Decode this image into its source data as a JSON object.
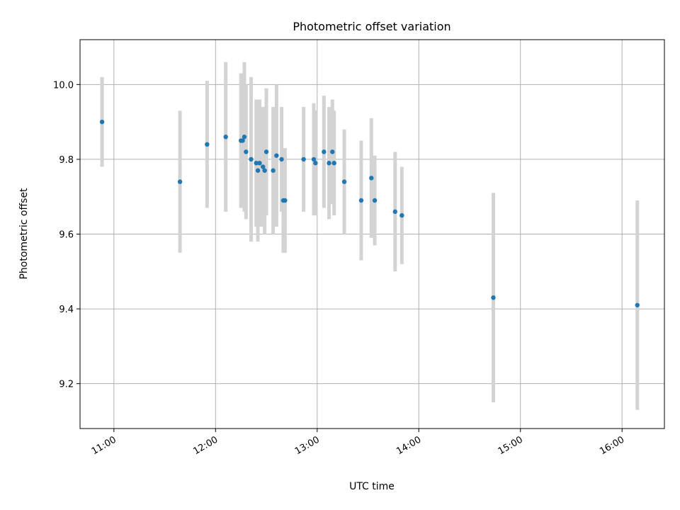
{
  "chart_data": {
    "type": "scatter",
    "title": "Photometric offset variation",
    "xlabel": "UTC time",
    "ylabel": "Photometric offset",
    "x_unit": "UTC time",
    "xlim": [
      "10:40",
      "16:25"
    ],
    "ylim": [
      9.08,
      10.12
    ],
    "x_ticks": [
      "11:00",
      "12:00",
      "13:00",
      "14:00",
      "15:00",
      "16:00"
    ],
    "y_ticks": [
      9.2,
      9.4,
      9.6,
      9.8,
      10.0
    ],
    "y_tick_labels": [
      "9.2",
      "9.4",
      "9.6",
      "9.8",
      "10.0"
    ],
    "grid": true,
    "colors": {
      "point": "#1f77b4",
      "errorbar": "#d3d3d3"
    },
    "points": [
      {
        "x": "10:53",
        "y": 9.9,
        "err": 0.12
      },
      {
        "x": "11:39",
        "y": 9.74,
        "err": 0.19
      },
      {
        "x": "11:55",
        "y": 9.84,
        "err": 0.17
      },
      {
        "x": "12:06",
        "y": 9.86,
        "err": 0.2
      },
      {
        "x": "12:15",
        "y": 9.85,
        "err": 0.18
      },
      {
        "x": "12:16",
        "y": 9.85,
        "err": 0.17
      },
      {
        "x": "12:17",
        "y": 9.86,
        "err": 0.2
      },
      {
        "x": "12:18",
        "y": 9.82,
        "err": 0.18
      },
      {
        "x": "12:21",
        "y": 9.8,
        "err": 0.22
      },
      {
        "x": "12:24",
        "y": 9.79,
        "err": 0.17
      },
      {
        "x": "12:25",
        "y": 9.77,
        "err": 0.19
      },
      {
        "x": "12:26",
        "y": 9.79,
        "err": 0.17
      },
      {
        "x": "12:28",
        "y": 9.78,
        "err": 0.16
      },
      {
        "x": "12:29",
        "y": 9.77,
        "err": 0.17
      },
      {
        "x": "12:30",
        "y": 9.82,
        "err": 0.17
      },
      {
        "x": "12:34",
        "y": 9.77,
        "err": 0.17
      },
      {
        "x": "12:36",
        "y": 9.81,
        "err": 0.19
      },
      {
        "x": "12:39",
        "y": 9.8,
        "err": 0.14
      },
      {
        "x": "12:40",
        "y": 9.69,
        "err": 0.14
      },
      {
        "x": "12:41",
        "y": 9.69,
        "err": 0.14
      },
      {
        "x": "12:52",
        "y": 9.8,
        "err": 0.14
      },
      {
        "x": "12:58",
        "y": 9.8,
        "err": 0.15
      },
      {
        "x": "12:59",
        "y": 9.79,
        "err": 0.14
      },
      {
        "x": "13:04",
        "y": 9.82,
        "err": 0.15
      },
      {
        "x": "13:07",
        "y": 9.79,
        "err": 0.15
      },
      {
        "x": "13:09",
        "y": 9.82,
        "err": 0.14
      },
      {
        "x": "13:10",
        "y": 9.79,
        "err": 0.14
      },
      {
        "x": "13:16",
        "y": 9.74,
        "err": 0.14
      },
      {
        "x": "13:26",
        "y": 9.69,
        "err": 0.16
      },
      {
        "x": "13:32",
        "y": 9.75,
        "err": 0.16
      },
      {
        "x": "13:34",
        "y": 9.69,
        "err": 0.12
      },
      {
        "x": "13:46",
        "y": 9.66,
        "err": 0.16
      },
      {
        "x": "13:50",
        "y": 9.65,
        "err": 0.13
      },
      {
        "x": "14:44",
        "y": 9.43,
        "err": 0.28
      },
      {
        "x": "16:09",
        "y": 9.41,
        "err": 0.28
      }
    ]
  }
}
